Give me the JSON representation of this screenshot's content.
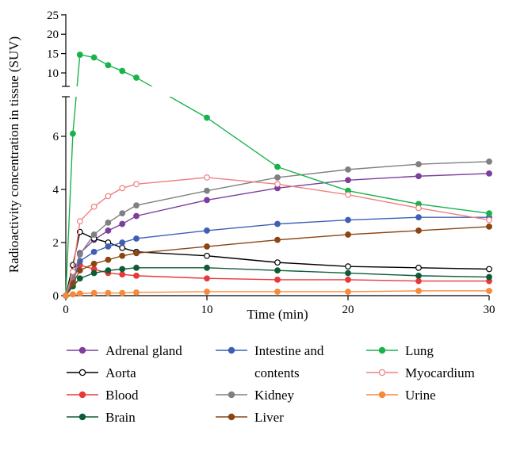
{
  "chart_data": {
    "type": "line",
    "title": "",
    "xlabel": "Time (min)",
    "ylabel": "Radioactivity concentration in tissue (SUV)",
    "xlim": [
      0,
      30
    ],
    "ylim_lower": [
      0,
      7.5
    ],
    "ylim_upper": [
      7.5,
      25
    ],
    "broken_y_axis": true,
    "x_ticks": [
      "0",
      "10",
      "20",
      "30"
    ],
    "y_ticks_lower": [
      "0",
      "2",
      "4",
      "6"
    ],
    "y_ticks_upper": [
      "10",
      "15",
      "20",
      "25"
    ],
    "grid": false,
    "legend_position": "bottom",
    "x": [
      0,
      0.5,
      1,
      2,
      3,
      4,
      5,
      10,
      15,
      20,
      25,
      30
    ],
    "series": [
      {
        "name": "Adrenal gland",
        "color": "#7B3F9E",
        "marker": "filled",
        "values": [
          0,
          0.6,
          1.6,
          2.1,
          2.45,
          2.7,
          3.0,
          3.6,
          4.05,
          4.35,
          4.5,
          4.6
        ]
      },
      {
        "name": "Aorta",
        "color": "#000000",
        "marker": "open",
        "values": [
          0,
          1.15,
          2.4,
          2.15,
          2.0,
          1.8,
          1.65,
          1.5,
          1.25,
          1.1,
          1.05,
          1.0
        ]
      },
      {
        "name": "Blood",
        "color": "#E8393A",
        "marker": "filled",
        "values": [
          0,
          0.6,
          1.15,
          1.0,
          0.85,
          0.8,
          0.75,
          0.65,
          0.6,
          0.6,
          0.55,
          0.55
        ]
      },
      {
        "name": "Brain",
        "color": "#0E5C36",
        "marker": "filled",
        "values": [
          0,
          0.35,
          0.65,
          0.85,
          0.95,
          1.0,
          1.05,
          1.05,
          0.95,
          0.85,
          0.75,
          0.7
        ]
      },
      {
        "name": "Intestine and contents",
        "color": "#3F5FB5",
        "marker": "filled",
        "values": [
          0,
          0.55,
          1.3,
          1.65,
          1.85,
          2.0,
          2.15,
          2.45,
          2.7,
          2.85,
          2.95,
          2.95
        ]
      },
      {
        "name": "Kidney",
        "color": "#808080",
        "marker": "filled",
        "values": [
          0,
          0.7,
          1.55,
          2.3,
          2.75,
          3.1,
          3.4,
          3.95,
          4.45,
          4.75,
          4.95,
          5.05
        ]
      },
      {
        "name": "Liver",
        "color": "#8B4513",
        "marker": "filled",
        "values": [
          0,
          0.45,
          0.95,
          1.2,
          1.35,
          1.5,
          1.6,
          1.85,
          2.1,
          2.3,
          2.45,
          2.6
        ]
      },
      {
        "name": "Lung",
        "color": "#19B24B",
        "marker": "filled",
        "values": [
          0,
          6.1,
          14.7,
          14.0,
          12.0,
          10.5,
          9.5,
          6.7,
          4.85,
          3.95,
          3.45,
          3.1
        ]
      },
      {
        "name": "Myocardium",
        "color": "#F08080",
        "marker": "open",
        "values": [
          0,
          0.9,
          2.8,
          3.35,
          3.75,
          4.05,
          4.2,
          4.45,
          4.2,
          3.8,
          3.3,
          2.85
        ]
      },
      {
        "name": "Urine",
        "color": "#F5893C",
        "marker": "filled",
        "values": [
          0,
          0.05,
          0.08,
          0.1,
          0.1,
          0.1,
          0.12,
          0.15,
          0.15,
          0.15,
          0.18,
          0.18
        ]
      }
    ]
  }
}
